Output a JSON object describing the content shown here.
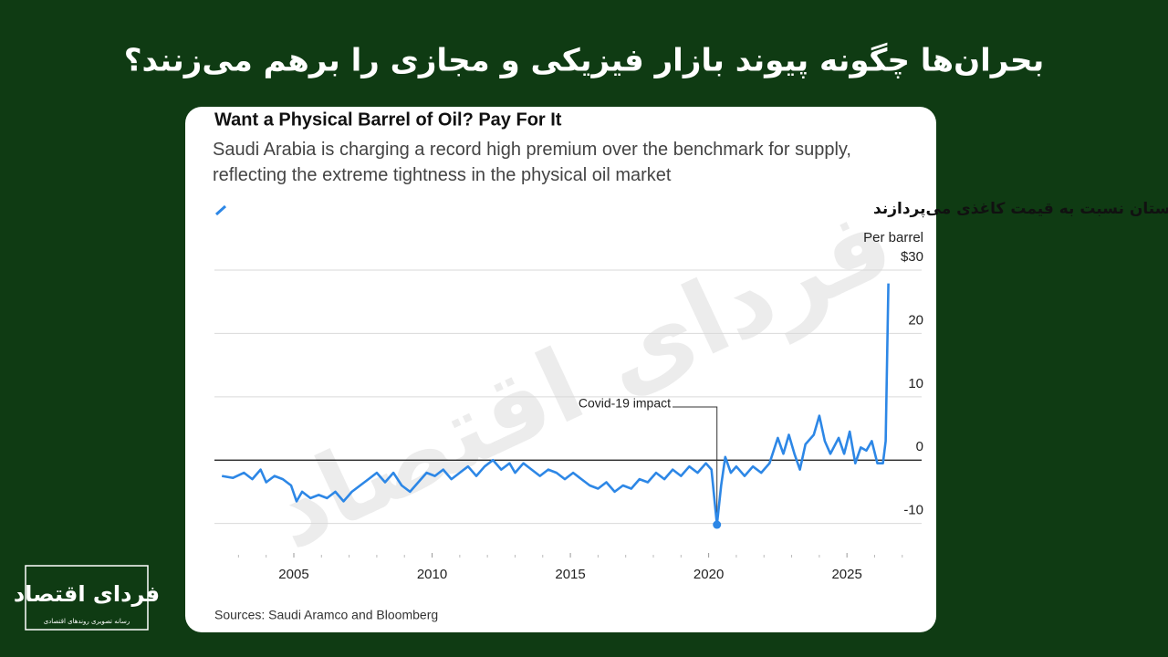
{
  "header": {
    "title": "بحران‌ها چگونه پیوند بازار فیزیکی و مجازی را برهم می‌زنند؟"
  },
  "logo": {
    "name": "فردای اقتصاد",
    "tagline": "رسانه تصویری روندهای اقتصادی"
  },
  "chart_data": {
    "type": "line",
    "title": "Want a Physical Barrel of Oil? Pay For It",
    "subtitle": "Saudi Arabia is charging a record high premium over the benchmark for supply, reflecting the extreme tightness in the physical oil market",
    "y_label": "Per barrel",
    "annotation": "Covid-19 impact",
    "annotation_index": 61,
    "source": "Sources: Saudi Aramco and Bloomberg",
    "xlim": [
      2002.13,
      2027.7
    ],
    "xticks": [
      2005,
      2010,
      2015,
      2020,
      2025
    ],
    "ylim": [
      -12.5,
      30
    ],
    "yticks": [
      {
        "value": 30,
        "label": "$30"
      },
      20,
      10,
      0,
      -10
    ],
    "grid": true,
    "x": [
      2002.4,
      2002.8,
      2003.2,
      2003.5,
      2003.8,
      2004.0,
      2004.3,
      2004.6,
      2004.9,
      2005.1,
      2005.3,
      2005.6,
      2005.9,
      2006.2,
      2006.5,
      2006.8,
      2007.1,
      2007.4,
      2007.7,
      2008.0,
      2008.3,
      2008.6,
      2008.9,
      2009.2,
      2009.5,
      2009.8,
      2010.1,
      2010.4,
      2010.7,
      2011.0,
      2011.3,
      2011.6,
      2011.9,
      2012.2,
      2012.5,
      2012.8,
      2013.0,
      2013.3,
      2013.6,
      2013.9,
      2014.2,
      2014.5,
      2014.8,
      2015.1,
      2015.4,
      2015.7,
      2016.0,
      2016.3,
      2016.6,
      2016.9,
      2017.2,
      2017.5,
      2017.8,
      2018.1,
      2018.4,
      2018.7,
      2019.0,
      2019.3,
      2019.6,
      2019.9,
      2020.1,
      2020.3,
      2020.45,
      2020.6,
      2020.8,
      2021.0,
      2021.3,
      2021.6,
      2021.9,
      2022.2,
      2022.5,
      2022.7,
      2022.9,
      2023.1,
      2023.3,
      2023.5,
      2023.8,
      2024.0,
      2024.2,
      2024.4,
      2024.7,
      2024.9,
      2025.1,
      2025.3,
      2025.5,
      2025.7,
      2025.9,
      2026.1,
      2026.3,
      2026.4,
      2026.5
    ],
    "series": [
      {
        "name": "پریمیومی که خریداران واقعی نفت عربستان نسبت به قیمت کاغذی می‌پردازند",
        "color": "#2d87e6",
        "values": [
          -2.5,
          -2.8,
          -2.0,
          -3.0,
          -1.5,
          -3.5,
          -2.5,
          -3.0,
          -4.0,
          -6.5,
          -5.0,
          -6.0,
          -5.5,
          -6.0,
          -5.0,
          -6.5,
          -5.0,
          -4.0,
          -3.0,
          -2.0,
          -3.5,
          -2.0,
          -4.0,
          -5.0,
          -3.5,
          -2.0,
          -2.5,
          -1.5,
          -3.0,
          -2.0,
          -1.0,
          -2.5,
          -1.0,
          0.0,
          -1.5,
          -0.5,
          -2.0,
          -0.5,
          -1.5,
          -2.5,
          -1.5,
          -2.0,
          -3.0,
          -2.0,
          -3.0,
          -4.0,
          -4.5,
          -3.5,
          -5.0,
          -4.0,
          -4.5,
          -3.0,
          -3.5,
          -2.0,
          -3.0,
          -1.5,
          -2.5,
          -1.0,
          -2.0,
          -0.5,
          -1.5,
          -10.2,
          -4.0,
          0.5,
          -2.0,
          -1.0,
          -2.5,
          -1.0,
          -2.0,
          -0.5,
          3.5,
          1.0,
          4.0,
          1.0,
          -1.5,
          2.5,
          4.0,
          7.0,
          3.0,
          1.0,
          3.5,
          1.0,
          4.5,
          -0.5,
          2.0,
          1.5,
          3.0,
          -0.5,
          -0.5,
          3.0,
          27.9
        ]
      }
    ]
  }
}
